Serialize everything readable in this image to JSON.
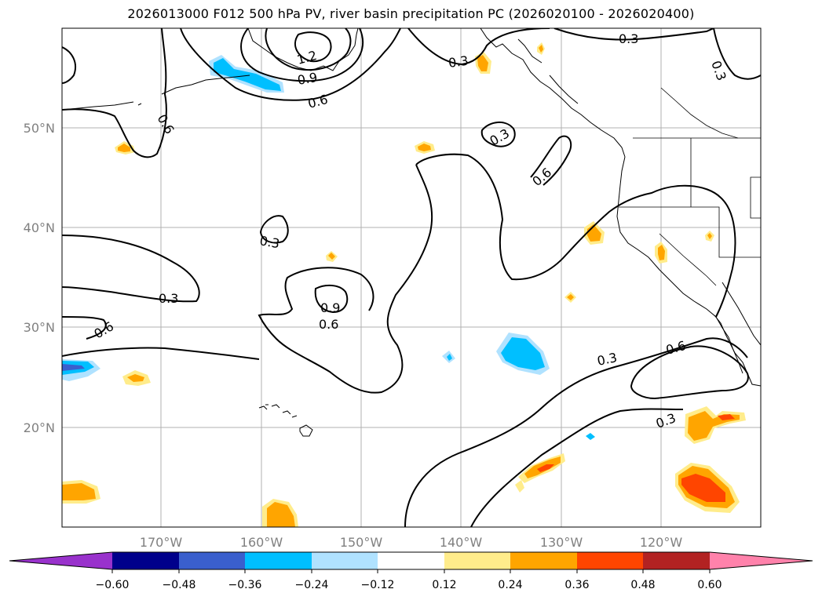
{
  "title": "2026013000 F012 500 hPa PV, river basin precipitation PC (2026020100 - 2026020400)",
  "map": {
    "lon_labels": [
      "170°W",
      "160°W",
      "150°W",
      "140°W",
      "130°W",
      "120°W"
    ],
    "lat_labels": [
      "50°N",
      "40°N",
      "30°N",
      "20°N"
    ],
    "contour_labels": [
      "1.2",
      "0.9",
      "0.6",
      "0.6",
      "0.3",
      "0.3",
      "0.3",
      "0.3",
      "0.6",
      "0.3",
      "0.3",
      "0.6",
      "0.9",
      "0.6",
      "0.3",
      "0.6",
      "0.3"
    ]
  },
  "colorbar": {
    "ticks": [
      "−0.60",
      "−0.48",
      "−0.36",
      "−0.24",
      "−0.12",
      "0.12",
      "0.24",
      "0.36",
      "0.48",
      "0.60"
    ],
    "colors": [
      "#9932cc",
      "#00008b",
      "#3a5fcd",
      "#00bfff",
      "#b0e2ff",
      "#ffffff",
      "#ffec8b",
      "#ffa500",
      "#ff4500",
      "#b22222",
      "#ff82ab"
    ]
  }
}
